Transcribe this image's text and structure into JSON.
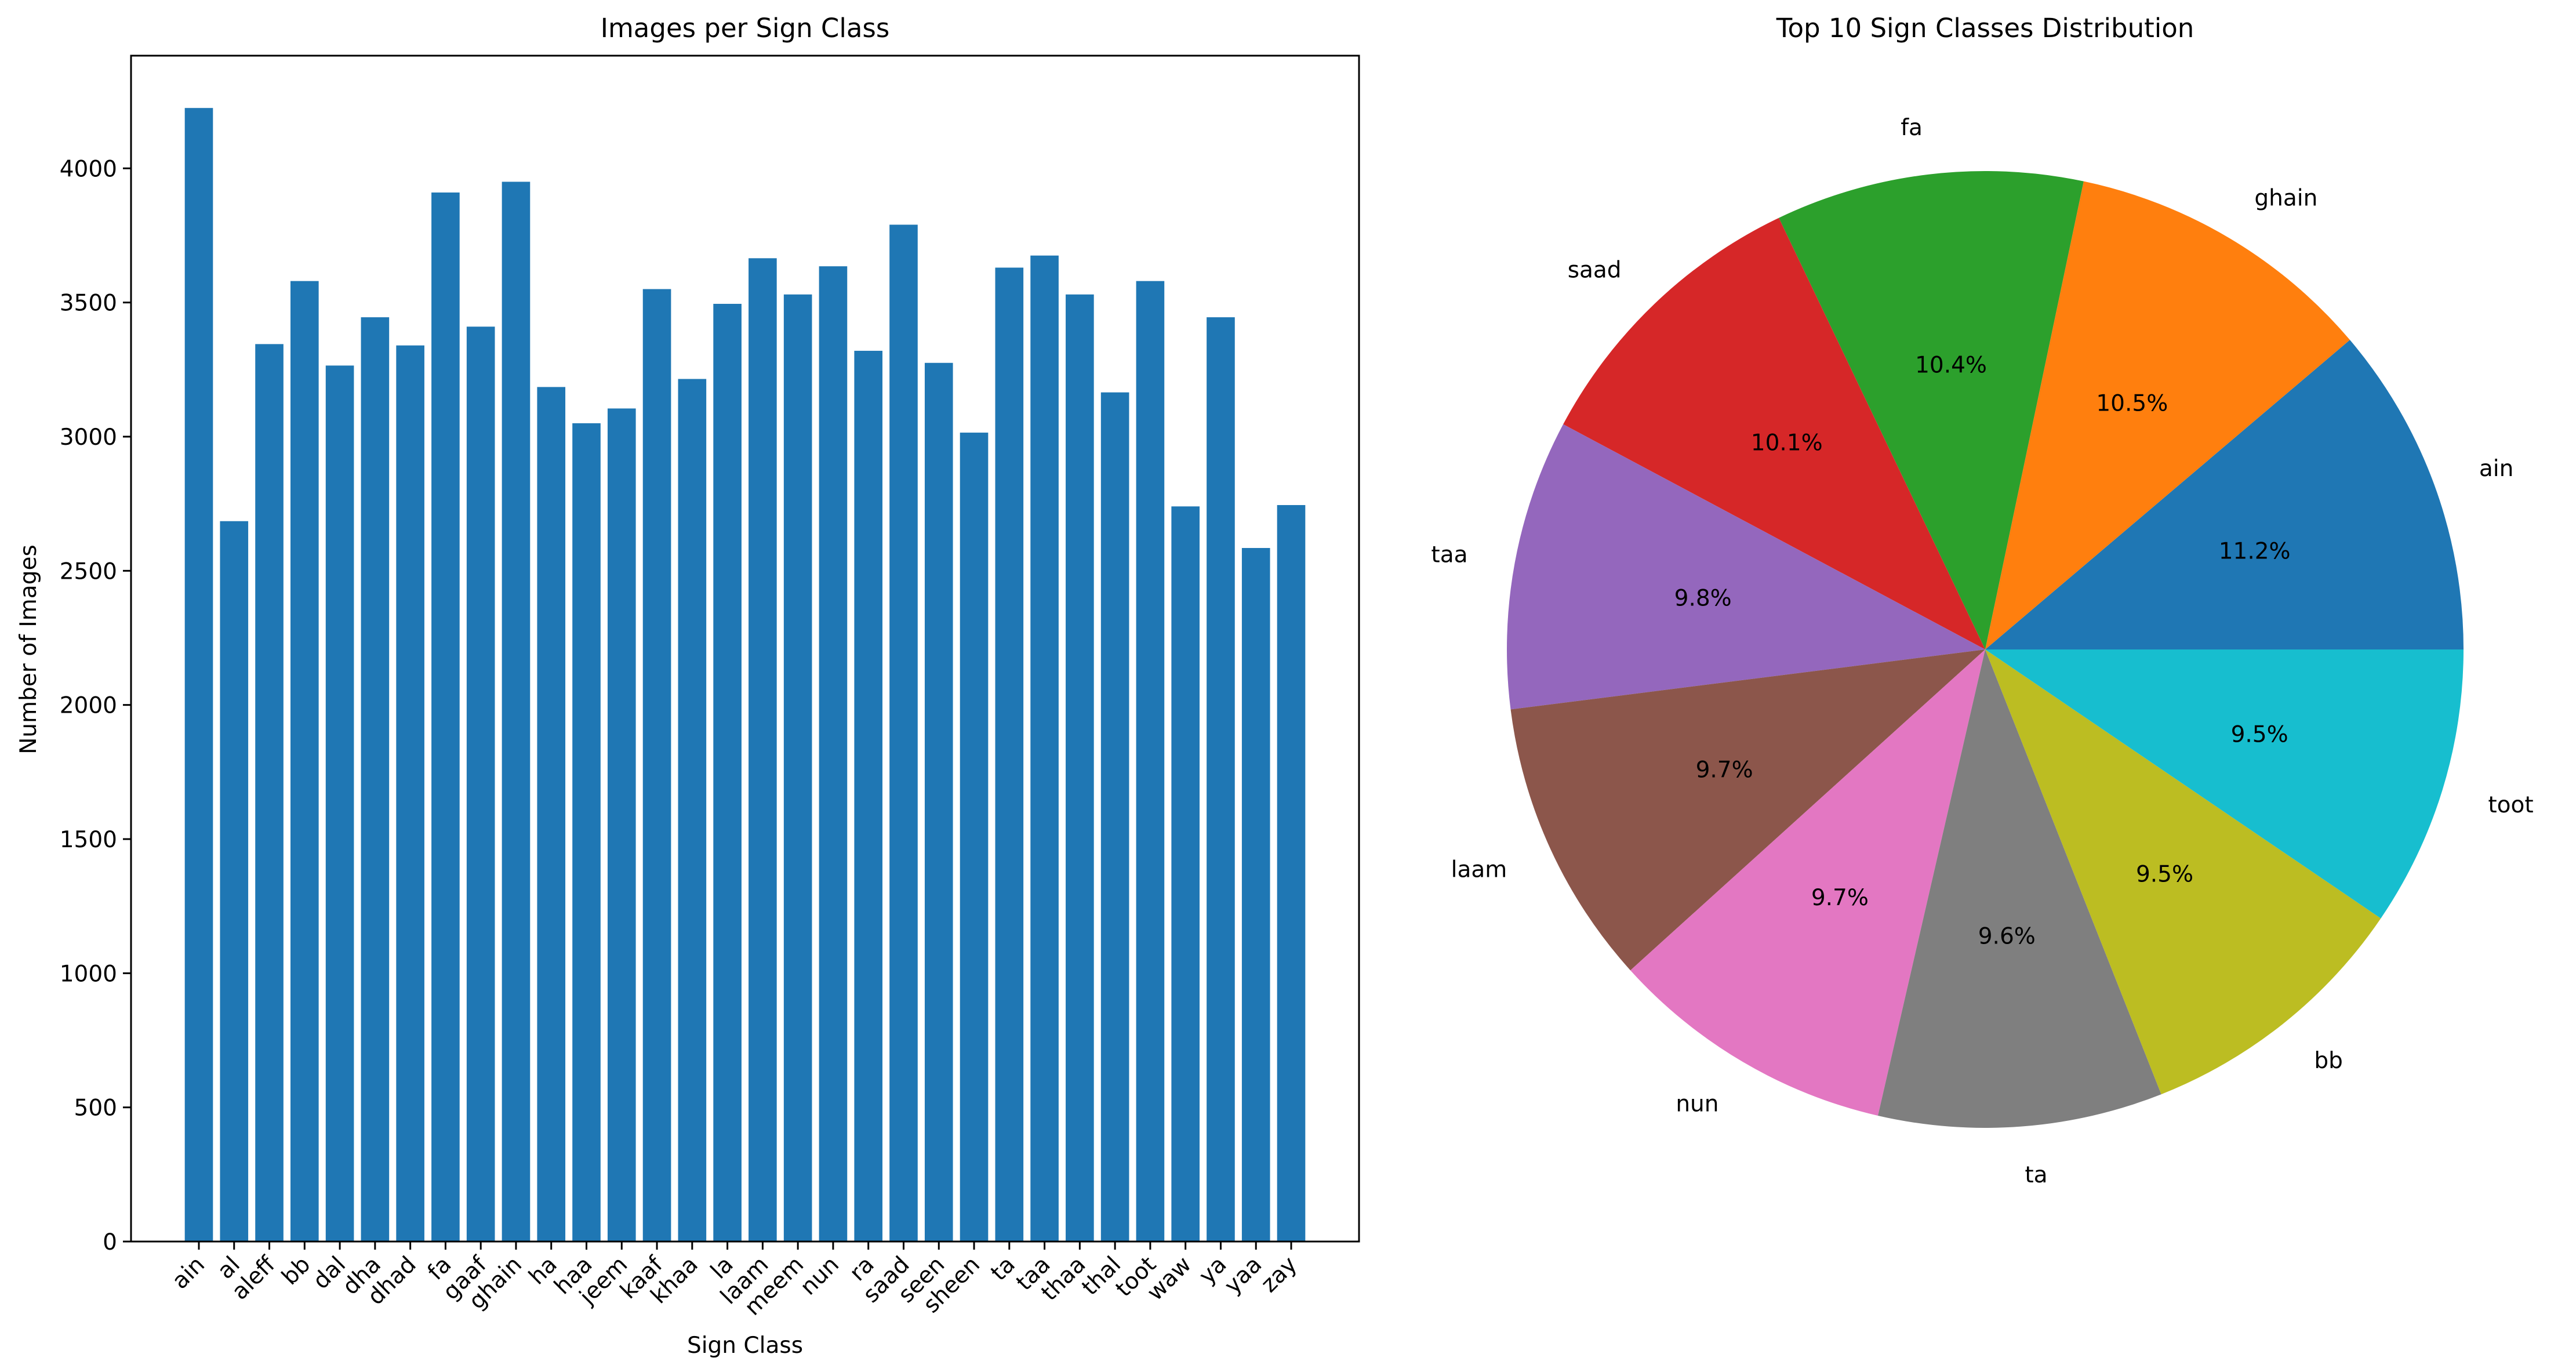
{
  "chart_data": [
    {
      "type": "bar",
      "title": "Images per Sign Class",
      "xlabel": "Sign Class",
      "ylabel": "Number of Images",
      "ylim": [
        0,
        4420
      ],
      "yticks": [
        0,
        500,
        1000,
        1500,
        2000,
        2500,
        3000,
        3500,
        4000
      ],
      "categories": [
        "ain",
        "al",
        "aleff",
        "bb",
        "dal",
        "dha",
        "dhad",
        "fa",
        "gaaf",
        "ghain",
        "ha",
        "haa",
        "jeem",
        "kaaf",
        "khaa",
        "la",
        "laam",
        "meem",
        "nun",
        "ra",
        "saad",
        "seen",
        "sheen",
        "ta",
        "taa",
        "thaa",
        "thal",
        "toot",
        "waw",
        "ya",
        "yaa",
        "zay"
      ],
      "values": [
        4225,
        2685,
        3345,
        3580,
        3265,
        3445,
        3340,
        3910,
        3410,
        3950,
        3185,
        3050,
        3105,
        3550,
        3215,
        3495,
        3665,
        3530,
        3635,
        3320,
        3790,
        3275,
        3015,
        3630,
        3675,
        3530,
        3165,
        3580,
        2740,
        3445,
        2585,
        2745
      ],
      "bar_color": "#1f77b4",
      "grid": false
    },
    {
      "type": "pie",
      "title": "Top 10 Sign Classes Distribution",
      "labels": [
        "ain",
        "ghain",
        "fa",
        "saad",
        "taa",
        "laam",
        "nun",
        "ta",
        "bb",
        "toot"
      ],
      "values": [
        11.2,
        10.5,
        10.4,
        10.1,
        9.8,
        9.7,
        9.7,
        9.6,
        9.5,
        9.5
      ],
      "percent_labels": [
        "11.2%",
        "10.5%",
        "10.4%",
        "10.1%",
        "9.8%",
        "9.7%",
        "9.7%",
        "9.6%",
        "9.5%",
        "9.5%"
      ],
      "colors": [
        "#1f77b4",
        "#ff7f0e",
        "#2ca02c",
        "#d62728",
        "#9467bd",
        "#8c564b",
        "#e377c2",
        "#7f7f7f",
        "#bcbd22",
        "#17becf"
      ],
      "start_angle": 0,
      "direction": "counterclockwise"
    }
  ]
}
